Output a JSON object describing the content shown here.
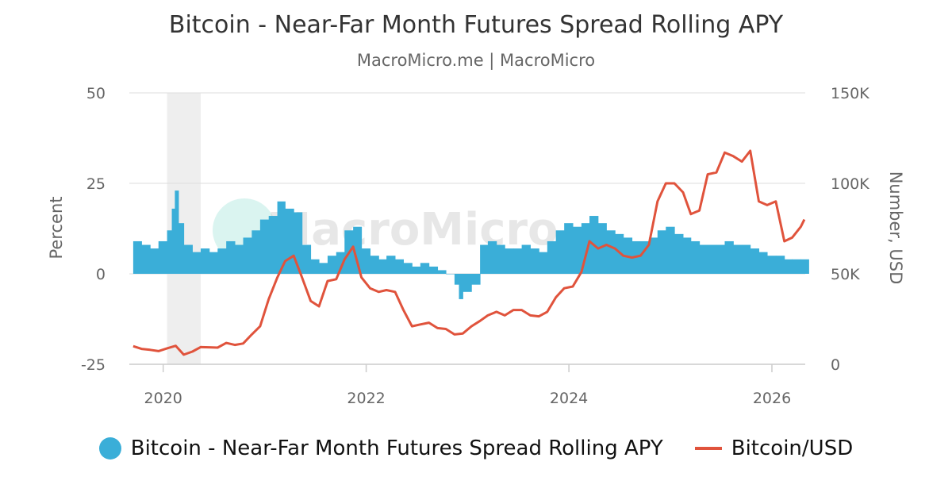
{
  "chart_data": {
    "type": "bar+line",
    "title": "Bitcoin - Near-Far Month Futures Spread Rolling APY",
    "subtitle": "MacroMicro.me | MacroMicro",
    "watermark": "MacroMicro",
    "y_left_label": "Percent",
    "y_right_label": "Number, USD",
    "y_left_range": [
      -25,
      50
    ],
    "y_right_range": [
      0,
      150000
    ],
    "y_left_ticks": [
      "50",
      "25",
      "0",
      "-25"
    ],
    "y_right_ticks": [
      "150K",
      "100K",
      "50K",
      "0"
    ],
    "x_ticks": [
      "2020",
      "2022",
      "2024",
      "2026"
    ],
    "x_range": [
      "2019-09-01",
      "2026-05-01"
    ],
    "grid": true,
    "legend_position": "bottom",
    "shaded_period": [
      "2020-01-15",
      "2020-05-15"
    ],
    "colors": {
      "spread": "#3aaed8",
      "price": "#e0533c",
      "shade": "#eeeeee",
      "grid": "#dddddd"
    },
    "series": [
      {
        "name": "Bitcoin - Near-Far Month Futures Spread Rolling APY",
        "kind": "bar",
        "axis": "left",
        "points": [
          [
            "2019-09-15",
            9
          ],
          [
            "2019-10-15",
            8
          ],
          [
            "2019-11-15",
            7
          ],
          [
            "2019-12-15",
            9
          ],
          [
            "2020-01-15",
            12
          ],
          [
            "2020-02-01",
            18
          ],
          [
            "2020-02-12",
            23
          ],
          [
            "2020-02-25",
            14
          ],
          [
            "2020-03-15",
            8
          ],
          [
            "2020-04-15",
            6
          ],
          [
            "2020-05-15",
            7
          ],
          [
            "2020-06-15",
            6
          ],
          [
            "2020-07-15",
            7
          ],
          [
            "2020-08-15",
            9
          ],
          [
            "2020-09-15",
            8
          ],
          [
            "2020-10-15",
            10
          ],
          [
            "2020-11-15",
            12
          ],
          [
            "2020-12-15",
            15
          ],
          [
            "2021-01-15",
            16
          ],
          [
            "2021-02-15",
            20
          ],
          [
            "2021-03-15",
            18
          ],
          [
            "2021-04-15",
            17
          ],
          [
            "2021-05-15",
            8
          ],
          [
            "2021-06-15",
            4
          ],
          [
            "2021-07-15",
            3
          ],
          [
            "2021-08-15",
            5
          ],
          [
            "2021-09-15",
            6
          ],
          [
            "2021-10-15",
            12
          ],
          [
            "2021-11-15",
            13
          ],
          [
            "2021-12-15",
            7
          ],
          [
            "2022-01-15",
            5
          ],
          [
            "2022-02-15",
            4
          ],
          [
            "2022-03-15",
            5
          ],
          [
            "2022-04-15",
            4
          ],
          [
            "2022-05-15",
            3
          ],
          [
            "2022-06-15",
            2
          ],
          [
            "2022-07-15",
            3
          ],
          [
            "2022-08-15",
            2
          ],
          [
            "2022-09-15",
            1
          ],
          [
            "2022-10-15",
            0
          ],
          [
            "2022-11-15",
            -3
          ],
          [
            "2022-12-01",
            -7
          ],
          [
            "2022-12-15",
            -5
          ],
          [
            "2023-01-15",
            -3
          ],
          [
            "2023-02-15",
            8
          ],
          [
            "2023-03-15",
            9
          ],
          [
            "2023-04-15",
            8
          ],
          [
            "2023-05-15",
            7
          ],
          [
            "2023-06-15",
            7
          ],
          [
            "2023-07-15",
            8
          ],
          [
            "2023-08-15",
            7
          ],
          [
            "2023-09-15",
            6
          ],
          [
            "2023-10-15",
            9
          ],
          [
            "2023-11-15",
            12
          ],
          [
            "2023-12-15",
            14
          ],
          [
            "2024-01-15",
            13
          ],
          [
            "2024-02-15",
            14
          ],
          [
            "2024-03-15",
            16
          ],
          [
            "2024-04-15",
            14
          ],
          [
            "2024-05-15",
            12
          ],
          [
            "2024-06-15",
            11
          ],
          [
            "2024-07-15",
            10
          ],
          [
            "2024-08-15",
            9
          ],
          [
            "2024-09-15",
            9
          ],
          [
            "2024-10-15",
            10
          ],
          [
            "2024-11-15",
            12
          ],
          [
            "2024-12-15",
            13
          ],
          [
            "2025-01-15",
            11
          ],
          [
            "2025-02-15",
            10
          ],
          [
            "2025-03-15",
            9
          ],
          [
            "2025-04-15",
            8
          ],
          [
            "2025-05-15",
            8
          ],
          [
            "2025-06-15",
            8
          ],
          [
            "2025-07-15",
            9
          ],
          [
            "2025-08-15",
            8
          ],
          [
            "2025-09-15",
            8
          ],
          [
            "2025-10-15",
            7
          ],
          [
            "2025-11-15",
            6
          ],
          [
            "2025-12-15",
            5
          ],
          [
            "2026-01-15",
            5
          ],
          [
            "2026-02-15",
            4
          ],
          [
            "2026-03-15",
            4
          ],
          [
            "2026-04-15",
            4
          ]
        ]
      },
      {
        "name": "Bitcoin/USD",
        "kind": "line",
        "axis": "right",
        "points": [
          [
            "2019-09-15",
            10000
          ],
          [
            "2019-10-15",
            8500
          ],
          [
            "2019-11-15",
            8000
          ],
          [
            "2019-12-15",
            7300
          ],
          [
            "2020-01-15",
            8800
          ],
          [
            "2020-02-15",
            10200
          ],
          [
            "2020-03-15",
            5300
          ],
          [
            "2020-04-15",
            7000
          ],
          [
            "2020-05-15",
            9500
          ],
          [
            "2020-06-15",
            9400
          ],
          [
            "2020-07-15",
            9200
          ],
          [
            "2020-08-15",
            11800
          ],
          [
            "2020-09-15",
            10700
          ],
          [
            "2020-10-15",
            11500
          ],
          [
            "2020-11-15",
            16500
          ],
          [
            "2020-12-15",
            21000
          ],
          [
            "2021-01-15",
            36000
          ],
          [
            "2021-02-15",
            48000
          ],
          [
            "2021-03-15",
            57000
          ],
          [
            "2021-04-15",
            60000
          ],
          [
            "2021-05-15",
            48000
          ],
          [
            "2021-06-15",
            35000
          ],
          [
            "2021-07-15",
            32000
          ],
          [
            "2021-08-15",
            46000
          ],
          [
            "2021-09-15",
            47000
          ],
          [
            "2021-10-15",
            58000
          ],
          [
            "2021-11-15",
            65000
          ],
          [
            "2021-12-15",
            48000
          ],
          [
            "2022-01-15",
            42000
          ],
          [
            "2022-02-15",
            40000
          ],
          [
            "2022-03-15",
            41000
          ],
          [
            "2022-04-15",
            40000
          ],
          [
            "2022-05-15",
            30000
          ],
          [
            "2022-06-15",
            21000
          ],
          [
            "2022-07-15",
            22000
          ],
          [
            "2022-08-15",
            23000
          ],
          [
            "2022-09-15",
            20000
          ],
          [
            "2022-10-15",
            19500
          ],
          [
            "2022-11-15",
            16500
          ],
          [
            "2022-12-15",
            17000
          ],
          [
            "2023-01-15",
            21000
          ],
          [
            "2023-02-15",
            24000
          ],
          [
            "2023-03-15",
            27000
          ],
          [
            "2023-04-15",
            29000
          ],
          [
            "2023-05-15",
            27000
          ],
          [
            "2023-06-15",
            30000
          ],
          [
            "2023-07-15",
            30000
          ],
          [
            "2023-08-15",
            27000
          ],
          [
            "2023-09-15",
            26500
          ],
          [
            "2023-10-15",
            29000
          ],
          [
            "2023-11-15",
            37000
          ],
          [
            "2023-12-15",
            42000
          ],
          [
            "2024-01-15",
            43000
          ],
          [
            "2024-02-15",
            51000
          ],
          [
            "2024-03-15",
            68000
          ],
          [
            "2024-04-15",
            64000
          ],
          [
            "2024-05-15",
            66000
          ],
          [
            "2024-06-15",
            64000
          ],
          [
            "2024-07-15",
            60000
          ],
          [
            "2024-08-15",
            59000
          ],
          [
            "2024-09-15",
            60000
          ],
          [
            "2024-10-15",
            66000
          ],
          [
            "2024-11-15",
            90000
          ],
          [
            "2024-12-15",
            100000
          ],
          [
            "2025-01-15",
            100000
          ],
          [
            "2025-02-15",
            95000
          ],
          [
            "2025-03-15",
            83000
          ],
          [
            "2025-04-15",
            85000
          ],
          [
            "2025-05-15",
            105000
          ],
          [
            "2025-06-15",
            106000
          ],
          [
            "2025-07-15",
            117000
          ],
          [
            "2025-08-15",
            115000
          ],
          [
            "2025-09-15",
            112000
          ],
          [
            "2025-10-15",
            118000
          ],
          [
            "2025-11-15",
            90000
          ],
          [
            "2025-12-15",
            88000
          ],
          [
            "2026-01-15",
            90000
          ],
          [
            "2026-02-15",
            68000
          ],
          [
            "2026-03-15",
            70000
          ],
          [
            "2026-04-15",
            76000
          ],
          [
            "2026-04-28",
            80000
          ]
        ]
      }
    ]
  }
}
